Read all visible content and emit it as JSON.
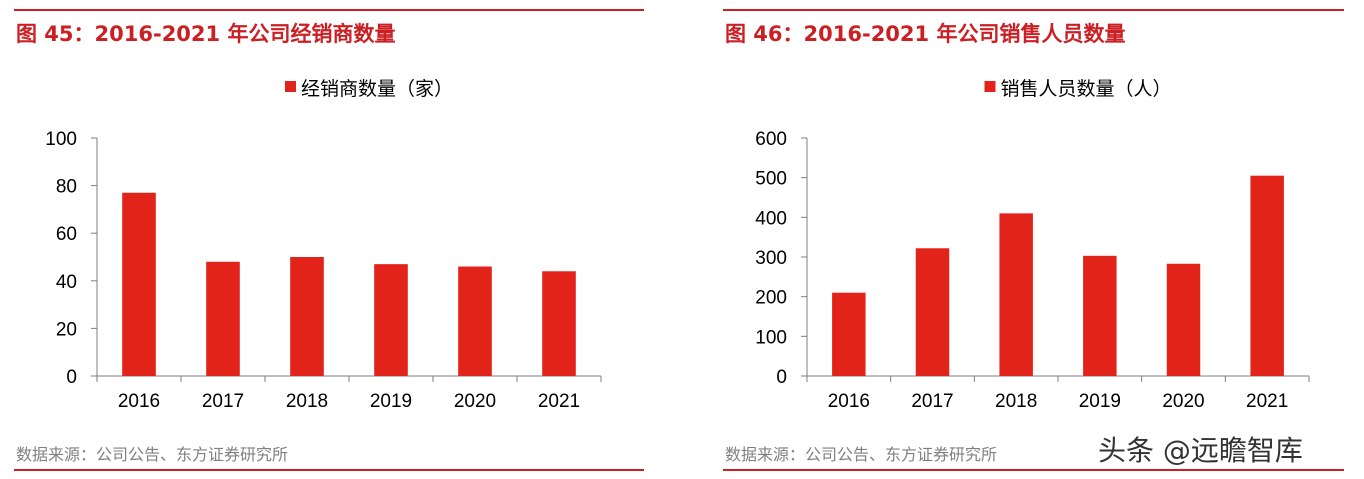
{
  "figures": [
    {
      "title": "图 45：2016-2021 年公司经销商数量",
      "source": "数据来源：公司公告、东方证券研究所"
    },
    {
      "title": "图 46：2016-2021 年公司销售人员数量",
      "source": "数据来源：公司公告、东方证券研究所"
    }
  ],
  "watermark": "头条 @远瞻智库",
  "colors": {
    "accent": "#cc1f24",
    "bar": "#e2231a",
    "axis": "#7f7f7f",
    "muted": "#808080"
  },
  "chart_data": [
    {
      "type": "bar",
      "categories": [
        "2016",
        "2017",
        "2018",
        "2019",
        "2020",
        "2021"
      ],
      "series": [
        {
          "name": "经销商数量（家）",
          "values": [
            77,
            48,
            50,
            47,
            46,
            44
          ]
        }
      ],
      "yticks": [
        "0",
        "20",
        "40",
        "60",
        "80",
        "100"
      ],
      "ylim": [
        0,
        100
      ],
      "legend": "top-center",
      "grid": false
    },
    {
      "type": "bar",
      "categories": [
        "2016",
        "2017",
        "2018",
        "2019",
        "2020",
        "2021"
      ],
      "series": [
        {
          "name": "销售人员数量（人）",
          "values": [
            210,
            322,
            410,
            303,
            283,
            505
          ]
        }
      ],
      "yticks": [
        "0",
        "100",
        "200",
        "300",
        "400",
        "500",
        "600"
      ],
      "ylim": [
        0,
        600
      ],
      "legend": "top-center",
      "grid": false
    }
  ]
}
